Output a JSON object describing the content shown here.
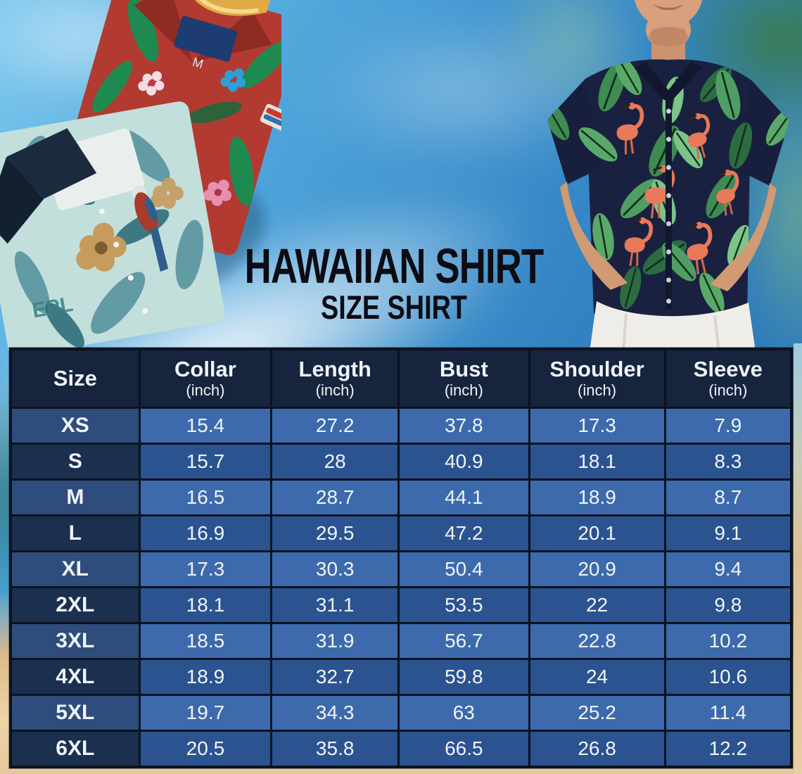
{
  "page": {
    "title": "HAWAIIAN SHIRT",
    "subtitle": "SIZE SHIRT"
  },
  "photos": {
    "left": {
      "tag_label": "M",
      "print_text": "EPL"
    },
    "right": {}
  },
  "size_table": {
    "columns": [
      {
        "label": "Size",
        "sub": ""
      },
      {
        "label": "Collar",
        "sub": "(inch)"
      },
      {
        "label": "Length",
        "sub": "(inch)"
      },
      {
        "label": "Bust",
        "sub": "(inch)"
      },
      {
        "label": "Shoulder",
        "sub": "(inch)"
      },
      {
        "label": "Sleeve",
        "sub": "(inch)"
      }
    ],
    "rows": [
      {
        "size": "XS",
        "values": [
          "15.4",
          "27.2",
          "37.8",
          "17.3",
          "7.9"
        ]
      },
      {
        "size": "S",
        "values": [
          "15.7",
          "28",
          "40.9",
          "18.1",
          "8.3"
        ]
      },
      {
        "size": "M",
        "values": [
          "16.5",
          "28.7",
          "44.1",
          "18.9",
          "8.7"
        ]
      },
      {
        "size": "L",
        "values": [
          "16.9",
          "29.5",
          "47.2",
          "20.1",
          "9.1"
        ]
      },
      {
        "size": "XL",
        "values": [
          "17.3",
          "30.3",
          "50.4",
          "20.9",
          "9.4"
        ]
      },
      {
        "size": "2XL",
        "values": [
          "18.1",
          "31.1",
          "53.5",
          "22",
          "9.8"
        ]
      },
      {
        "size": "3XL",
        "values": [
          "18.5",
          "31.9",
          "56.7",
          "22.8",
          "10.2"
        ]
      },
      {
        "size": "4XL",
        "values": [
          "18.9",
          "32.7",
          "59.8",
          "24",
          "10.6"
        ]
      },
      {
        "size": "5XL",
        "values": [
          "19.7",
          "34.3",
          "63",
          "25.2",
          "11.4"
        ]
      },
      {
        "size": "6XL",
        "values": [
          "20.5",
          "35.8",
          "66.5",
          "26.8",
          "12.2"
        ]
      }
    ]
  },
  "chart_data": {
    "type": "table",
    "title": "HAWAIIAN SHIRT SIZE SHIRT",
    "categories": [
      "XS",
      "S",
      "M",
      "L",
      "XL",
      "2XL",
      "3XL",
      "4XL",
      "5XL",
      "6XL"
    ],
    "series": [
      {
        "name": "Collar (inch)",
        "values": [
          15.4,
          15.7,
          16.5,
          16.9,
          17.3,
          18.1,
          18.5,
          18.9,
          19.7,
          20.5
        ]
      },
      {
        "name": "Length (inch)",
        "values": [
          27.2,
          28,
          28.7,
          29.5,
          30.3,
          31.1,
          31.9,
          32.7,
          34.3,
          35.8
        ]
      },
      {
        "name": "Bust (inch)",
        "values": [
          37.8,
          40.9,
          44.1,
          47.2,
          50.4,
          53.5,
          56.7,
          59.8,
          63,
          66.5
        ]
      },
      {
        "name": "Shoulder (inch)",
        "values": [
          17.3,
          18.1,
          18.9,
          20.1,
          20.9,
          22,
          22.8,
          24,
          25.2,
          26.8
        ]
      },
      {
        "name": "Sleeve (inch)",
        "values": [
          7.9,
          8.3,
          8.7,
          9.1,
          9.4,
          9.8,
          10.2,
          10.6,
          11.4,
          12.2
        ]
      }
    ]
  },
  "colors": {
    "header_bg": "#16243e",
    "row_light": "#3c6aac",
    "row_dark": "#2b5390",
    "size_col_light": "#2e4d7c",
    "size_col_dark": "#1b2f4f",
    "table_border": "#0b1220",
    "table_text": "#f0f4f9",
    "title_color": "#0c0c14",
    "sky_blue": "#3a8ecb",
    "sand": "#eed3a6",
    "shirt_navy": "#1a2140",
    "shirt_red": "#b23a31",
    "shirt_teal": "#c3dfdc"
  }
}
